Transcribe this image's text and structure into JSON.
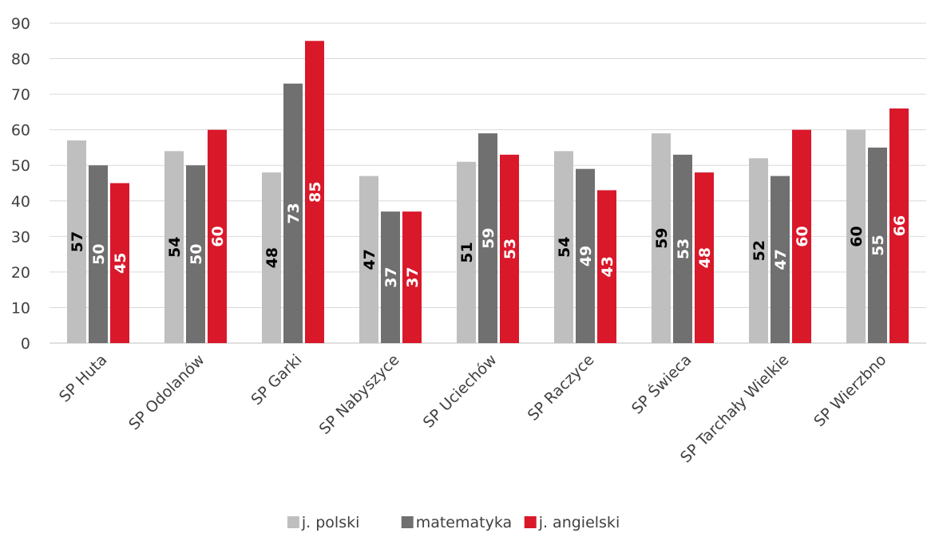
{
  "chart_data": {
    "type": "bar",
    "categories": [
      "SP Huta",
      "SP Odolanów",
      "SP Garki",
      "SP Nabyszyce",
      "SP Uciechów",
      "SP Raczyce",
      "SP Świeca",
      "SP Tarchały Wielkie",
      "SP Wierzbno"
    ],
    "series": [
      {
        "name": "j. polski",
        "color": "#bfbfbf",
        "label_color": "#000000",
        "values": [
          57,
          54,
          48,
          47,
          51,
          54,
          59,
          52,
          60
        ]
      },
      {
        "name": "matematyka",
        "color": "#707070",
        "label_color": "#ffffff",
        "values": [
          50,
          50,
          73,
          37,
          59,
          49,
          53,
          47,
          55
        ]
      },
      {
        "name": "j. angielski",
        "color": "#d9182a",
        "label_color": "#ffffff",
        "values": [
          45,
          60,
          85,
          37,
          53,
          43,
          48,
          60,
          66
        ]
      }
    ],
    "ylim": [
      0,
      90
    ],
    "yticks": [
      0,
      10,
      20,
      30,
      40,
      50,
      60,
      70,
      80,
      90
    ],
    "grid": true,
    "legend_position": "bottom",
    "data_labels": "inside rotated"
  }
}
